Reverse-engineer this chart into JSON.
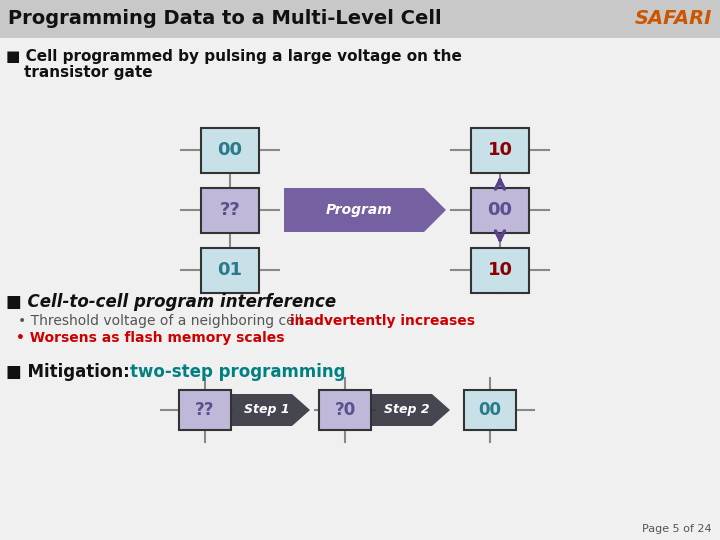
{
  "title": "Programming Data to a Multi-Level Cell",
  "safari_text": "SAFARI",
  "safari_color": "#cc5500",
  "title_bg": "#c8c8c8",
  "bg_color": "#f0f0f0",
  "left_boxes": [
    {
      "label": "00",
      "bg": "#c8e0e8",
      "text_color": "#2a7a8a",
      "border": "#333333"
    },
    {
      "label": "??",
      "bg": "#c0b8d8",
      "text_color": "#5a5090",
      "border": "#333333"
    },
    {
      "label": "01",
      "bg": "#c8e0e8",
      "text_color": "#2a7a8a",
      "border": "#333333"
    }
  ],
  "right_boxes": [
    {
      "label": "10",
      "bg": "#c8e0e8",
      "text_color": "#8b0000",
      "border": "#333333"
    },
    {
      "label": "00",
      "bg": "#c0b8d8",
      "text_color": "#5a5090",
      "border": "#333333"
    },
    {
      "label": "10",
      "bg": "#c8e0e8",
      "text_color": "#8b0000",
      "border": "#333333"
    }
  ],
  "bottom_flow": [
    {
      "type": "box",
      "label": "??",
      "bg": "#c0b8d8",
      "text_color": "#5a5090",
      "border": "#333333"
    },
    {
      "type": "arrow",
      "label": "Step 1",
      "bg": "#333340"
    },
    {
      "type": "box",
      "label": "?0",
      "bg": "#c0b8d8",
      "text_color": "#5a5090",
      "border": "#333333"
    },
    {
      "type": "arrow",
      "label": "Step 2",
      "bg": "#333340"
    },
    {
      "type": "box",
      "label": "00",
      "bg": "#c8e0e8",
      "text_color": "#2a7a8a",
      "border": "#333333"
    }
  ],
  "interference_arrow_color": "#5a4090",
  "program_arrow_color": "#5a4090",
  "program_text": "Program",
  "connector_color": "#888888",
  "red_color": "#cc0000",
  "teal_color": "#008080",
  "black_color": "#111111",
  "gray_color": "#555555",
  "page_text": "Page 5 of 24"
}
